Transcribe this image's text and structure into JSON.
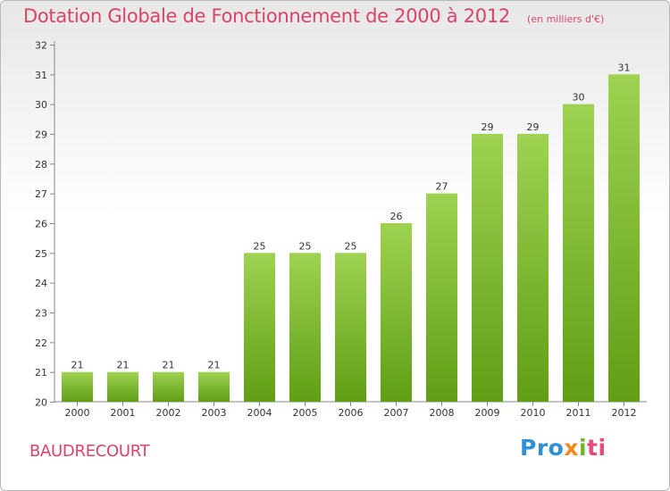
{
  "title": "Dotation Globale de Fonctionnement de 2000 à 2012",
  "unit_note": "(en milliers d'€)",
  "commune": "BAUDRECOURT",
  "logo": {
    "parts": [
      "Pro",
      "x",
      "i",
      "ti"
    ]
  },
  "colors": {
    "title": "#d9436a",
    "bar_top": "#9fd252",
    "bar_bottom": "#5f9e15"
  },
  "chart_data": {
    "type": "bar",
    "title": "Dotation Globale de Fonctionnement de 2000 à 2012",
    "subtitle": "(en milliers d'€)",
    "xlabel": "",
    "ylabel": "",
    "categories": [
      "2000",
      "2001",
      "2002",
      "2003",
      "2004",
      "2005",
      "2006",
      "2007",
      "2008",
      "2009",
      "2010",
      "2011",
      "2012"
    ],
    "values": [
      21,
      21,
      21,
      21,
      25,
      25,
      25,
      26,
      27,
      29,
      29,
      30,
      31
    ],
    "ylim": [
      20,
      32
    ],
    "yticks": [
      20,
      21,
      22,
      23,
      24,
      25,
      26,
      27,
      28,
      29,
      30,
      31,
      32
    ],
    "grid": false,
    "legend": "none"
  }
}
